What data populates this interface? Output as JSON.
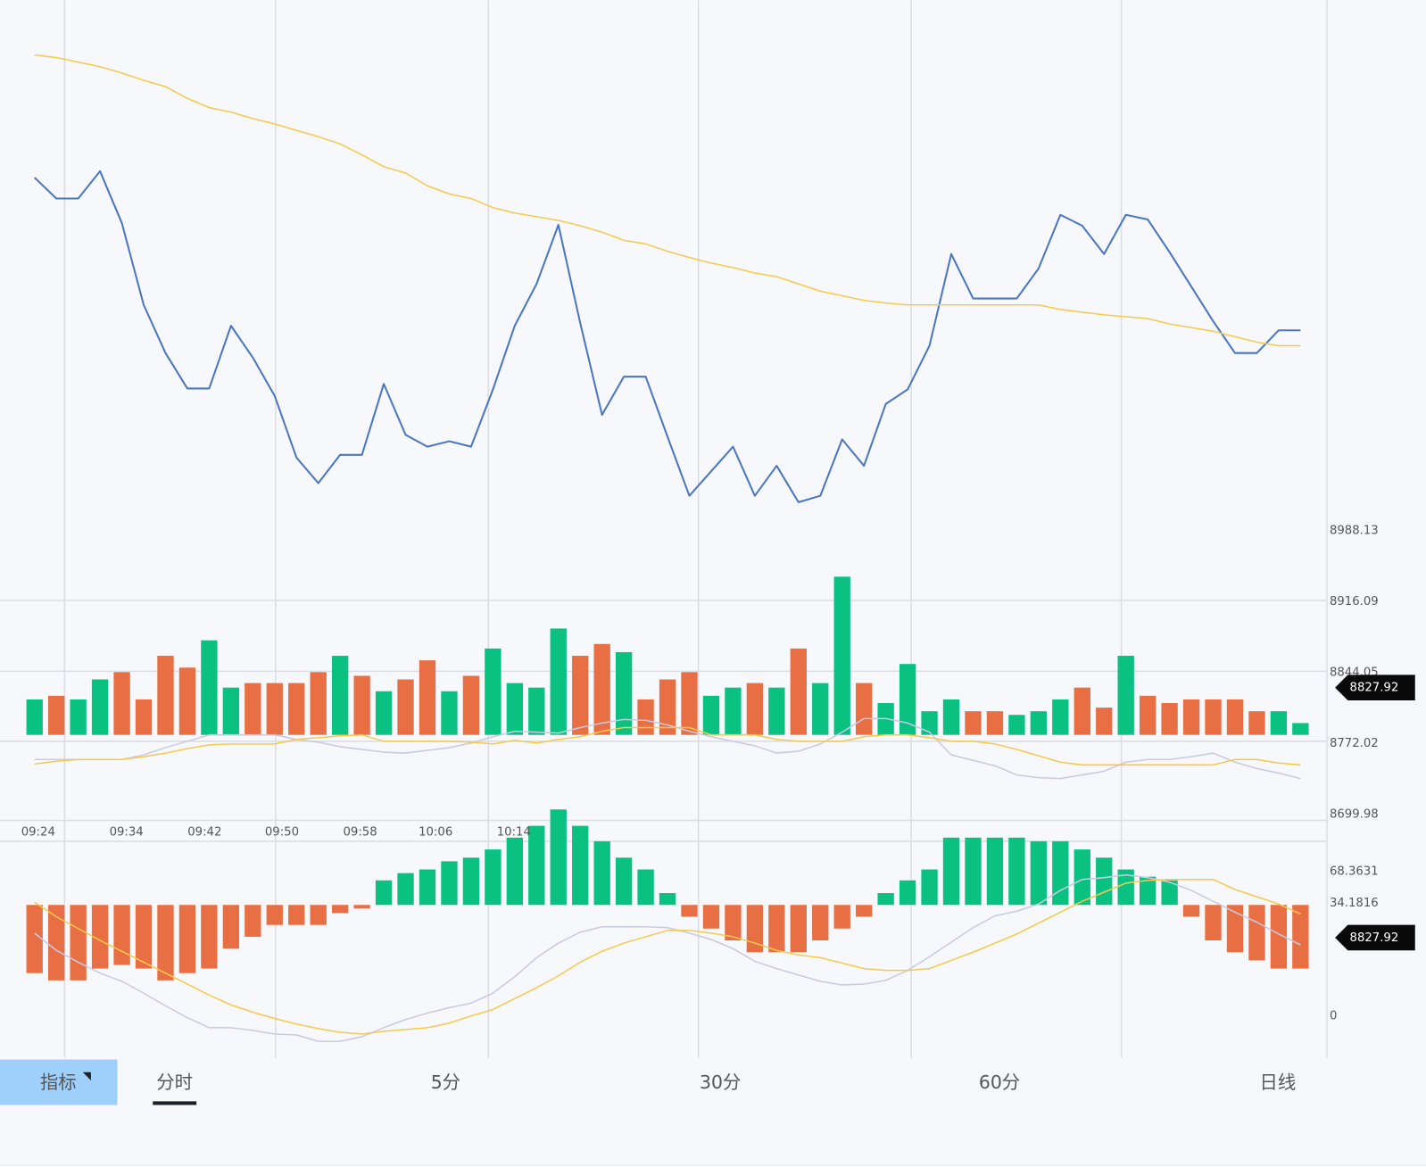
{
  "price_panel": {
    "type": "line",
    "ylim": [
      8699.98,
      9526.6
    ],
    "yticks": [
      8988.13,
      8916.09,
      8844.05,
      8772.02,
      8699.98
    ],
    "series": [
      {
        "color": "#4a76c0",
        "values": [
          9346.4,
          9325.2,
          9325.2,
          9352.9,
          9300.2,
          9217.1,
          9168.2,
          9132.2,
          9132.2,
          9195.9,
          9163.6,
          9124.8,
          9062.0,
          9036.1,
          9064.8,
          9064.8,
          9136.8,
          9085.1,
          9073.1,
          9078.6,
          9073.1,
          9131.2,
          9195.9,
          9238.4,
          9298.4,
          9198.7,
          9105.4,
          9144.2,
          9144.2,
          9083.2,
          9023.2,
          9048.1,
          9073.1,
          9023.2,
          9053.7,
          9016.7,
          9023.2,
          9080.5,
          9053.7,
          9116.5,
          9131.2,
          9175.6,
          9268.8,
          9223.6,
          9223.6,
          9223.6,
          9254.1,
          9308.6,
          9297.5,
          9268.8,
          9308.6,
          9303.9,
          9270.7,
          9235.6,
          9200.5,
          9168.2,
          9168.2,
          9191.3,
          9191.3
        ]
      },
      {
        "color": "#f5c94e",
        "values": [
          9471.1,
          9468.3,
          9463.7,
          9459.1,
          9452.6,
          9445.2,
          9438.8,
          9426.8,
          9417.5,
          9412.9,
          9406.4,
          9400.9,
          9394.4,
          9388.0,
          9380.6,
          9369.5,
          9357.5,
          9351.0,
          9338.1,
          9329.8,
          9325.2,
          9315.9,
          9310.4,
          9306.7,
          9303.0,
          9297.5,
          9291.0,
          9282.7,
          9279.0,
          9271.6,
          9265.2,
          9259.6,
          9255.0,
          9249.5,
          9245.8,
          9238.4,
          9231.0,
          9226.4,
          9221.7,
          9219.0,
          9217.1,
          9217.1,
          9217.1,
          9217.1,
          9217.1,
          9217.1,
          9217.1,
          9212.5,
          9209.7,
          9207.0,
          9205.1,
          9203.3,
          9197.7,
          9194.0,
          9190.3,
          9184.8,
          9179.3,
          9175.6,
          9175.6
        ]
      }
    ]
  },
  "volume_panel": {
    "type": "bar",
    "up_color": "#0bc182",
    "down_color": "#e86f44",
    "values": [
      39,
      43,
      39,
      61,
      69,
      39,
      87,
      74,
      104,
      52,
      57,
      57,
      57,
      69,
      87,
      65,
      48,
      61,
      82,
      48,
      65,
      95,
      57,
      52,
      117,
      87,
      100,
      91,
      39,
      61,
      69,
      43,
      52,
      57,
      52,
      95,
      57,
      174,
      57,
      35,
      78,
      26,
      39,
      26,
      26,
      22,
      26,
      39,
      52,
      30,
      87,
      43,
      35,
      39,
      39,
      39,
      26,
      26,
      13
    ],
    "directions": [
      "up",
      "down",
      "up",
      "up",
      "down",
      "down",
      "down",
      "down",
      "up",
      "up",
      "down",
      "down",
      "down",
      "down",
      "up",
      "down",
      "up",
      "down",
      "down",
      "up",
      "down",
      "up",
      "up",
      "up",
      "up",
      "down",
      "down",
      "up",
      "down",
      "down",
      "down",
      "up",
      "up",
      "down",
      "up",
      "down",
      "up",
      "up",
      "down",
      "up",
      "up",
      "up",
      "up",
      "down",
      "down",
      "up",
      "up",
      "up",
      "down",
      "down",
      "up",
      "down",
      "down",
      "down",
      "down",
      "down",
      "down",
      "up",
      "up"
    ],
    "ma_series": [
      {
        "color": "#c9c9e3",
        "values": [
          35,
          35,
          35,
          35,
          35,
          40,
          48,
          55,
          62,
          62,
          62,
          62,
          57,
          54,
          49,
          46,
          43,
          42,
          45,
          48,
          53,
          60,
          66,
          65,
          64,
          70,
          75,
          79,
          78,
          73,
          66,
          60,
          55,
          50,
          42,
          44,
          52,
          65,
          80,
          80,
          75,
          65,
          40,
          34,
          28,
          18,
          15,
          14,
          18,
          22,
          32,
          35,
          35,
          38,
          42,
          32,
          25,
          20,
          14
        ]
      },
      {
        "color": "#f5c94e",
        "values": [
          30,
          33,
          35,
          35,
          35,
          38,
          42,
          47,
          51,
          52,
          52,
          52,
          57,
          59,
          61,
          62,
          55,
          55,
          55,
          55,
          54,
          52,
          56,
          53,
          57,
          60,
          66,
          70,
          70,
          70,
          70,
          62,
          62,
          62,
          57,
          55,
          55,
          55,
          60,
          62,
          62,
          59,
          55,
          55,
          52,
          46,
          39,
          32,
          29,
          29,
          29,
          29,
          29,
          29,
          29,
          35,
          35,
          31,
          29
        ]
      }
    ]
  },
  "macd_panel": {
    "type": "bar",
    "up_color": "#0bc182",
    "down_color": "#e86f44",
    "axis_labels": [
      68.3631,
      34.1816,
      0
    ],
    "values": [
      -75,
      -83,
      -83,
      -70,
      -66,
      -70,
      -83,
      -75,
      -70,
      -48,
      -35,
      -22,
      -22,
      -22,
      -9,
      -4,
      27,
      35,
      39,
      48,
      52,
      61,
      74,
      87,
      105,
      87,
      70,
      52,
      39,
      13,
      -13,
      -26,
      -39,
      -52,
      -52,
      -52,
      -39,
      -26,
      -13,
      13,
      27,
      39,
      74,
      74,
      74,
      74,
      70,
      70,
      61,
      52,
      39,
      31,
      27,
      -13,
      -39,
      -52,
      -61,
      -70,
      -70
    ],
    "lines": [
      {
        "color": "#c9c9e3",
        "values": [
          -31,
          -50,
          -63,
          -75,
          -84,
          -97,
          -111,
          -124,
          -135,
          -135,
          -138,
          -142,
          -143,
          -150,
          -150,
          -145,
          -135,
          -126,
          -119,
          -113,
          -108,
          -97,
          -79,
          -58,
          -42,
          -30,
          -24,
          -24,
          -24,
          -25,
          -31,
          -38,
          -48,
          -62,
          -70,
          -77,
          -84,
          -88,
          -87,
          -83,
          -72,
          -57,
          -41,
          -25,
          -12,
          -7,
          1,
          16,
          28,
          30,
          33,
          30,
          25,
          16,
          4,
          -8,
          -19,
          -32,
          -44
        ]
      },
      {
        "color": "#f5c94e",
        "values": [
          3,
          -13,
          -26,
          -39,
          -51,
          -63,
          -75,
          -87,
          -99,
          -110,
          -118,
          -125,
          -131,
          -136,
          -140,
          -142,
          -139,
          -137,
          -135,
          -130,
          -122,
          -115,
          -103,
          -91,
          -78,
          -63,
          -51,
          -42,
          -35,
          -28,
          -28,
          -31,
          -35,
          -42,
          -50,
          -55,
          -58,
          -64,
          -70,
          -72,
          -72,
          -70,
          -61,
          -52,
          -42,
          -32,
          -20,
          -8,
          4,
          14,
          24,
          27,
          28,
          28,
          28,
          17,
          9,
          1,
          -10
        ]
      }
    ]
  },
  "time_labels": [
    "09:24",
    "09:34",
    "09:42",
    "09:50",
    "09:58",
    "10:06",
    "10:14"
  ],
  "price_tags": [
    "8827.92",
    "8827.92"
  ],
  "tabs": {
    "indicator": "指标",
    "items": [
      "分时",
      "5分",
      "30分",
      "60分",
      "日线"
    ]
  }
}
